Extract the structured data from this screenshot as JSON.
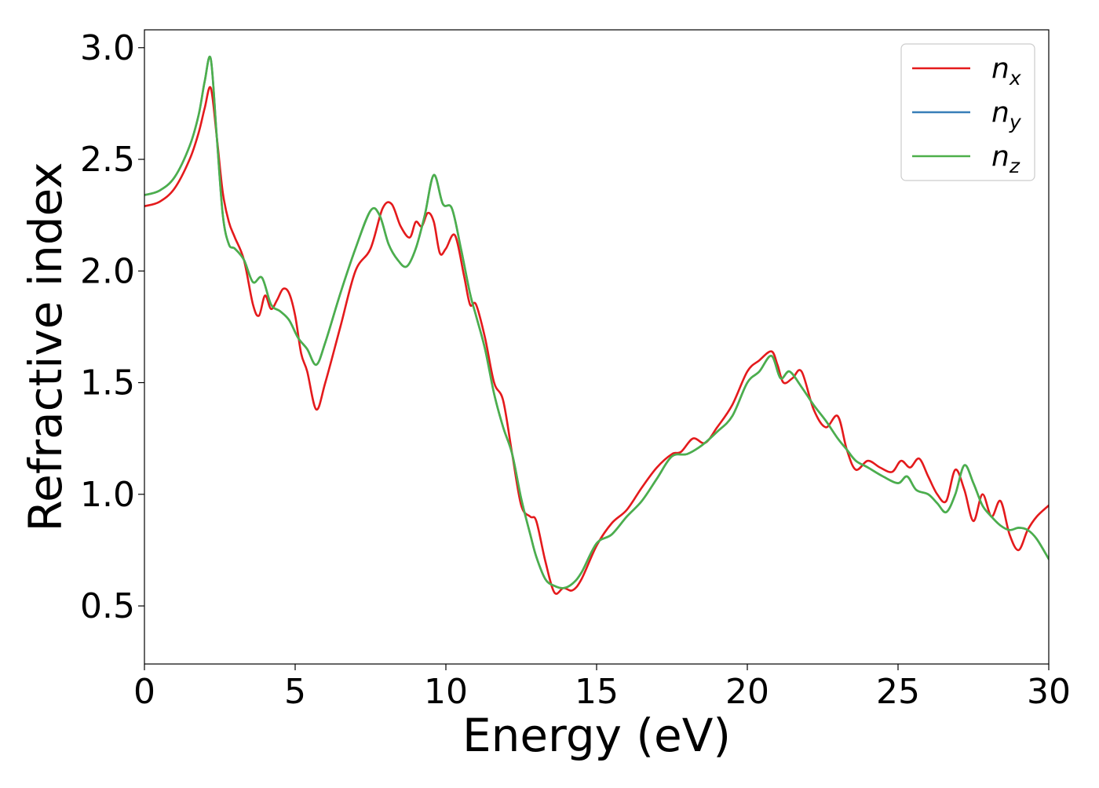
{
  "chart_data": {
    "type": "line",
    "xlabel": "Energy (eV)",
    "ylabel": "Refractive index",
    "xlim": [
      0,
      30
    ],
    "ylim": [
      0.24,
      3.08
    ],
    "xticks": [
      0,
      5,
      10,
      15,
      20,
      25,
      30
    ],
    "xtick_labels": [
      "0",
      "5",
      "10",
      "15",
      "20",
      "25",
      "30"
    ],
    "yticks": [
      0.5,
      1.0,
      1.5,
      2.0,
      2.5,
      3.0
    ],
    "ytick_labels": [
      "0.5",
      "1.0",
      "1.5",
      "2.0",
      "2.5",
      "3.0"
    ],
    "grid": false,
    "legend_position": "top-right",
    "series": [
      {
        "name": "n_x",
        "legend_base": "n",
        "legend_sub": "x",
        "color": "#e41a1c",
        "x": [
          0,
          0.5,
          1.0,
          1.5,
          1.8,
          2.0,
          2.2,
          2.4,
          2.6,
          2.8,
          3.0,
          3.3,
          3.6,
          3.8,
          4.0,
          4.2,
          4.4,
          4.6,
          4.8,
          5.0,
          5.2,
          5.4,
          5.7,
          6.0,
          6.5,
          7.0,
          7.5,
          7.9,
          8.2,
          8.5,
          8.8,
          9.0,
          9.2,
          9.4,
          9.6,
          9.8,
          10.0,
          10.3,
          10.6,
          10.8,
          11.0,
          11.3,
          11.6,
          11.9,
          12.2,
          12.5,
          12.8,
          13.0,
          13.3,
          13.6,
          13.9,
          14.2,
          14.5,
          15.0,
          15.5,
          16.0,
          16.5,
          17.0,
          17.5,
          17.8,
          18.2,
          18.6,
          19.0,
          19.5,
          20.0,
          20.4,
          20.8,
          21.0,
          21.2,
          21.5,
          21.8,
          22.2,
          22.6,
          23.0,
          23.3,
          23.6,
          24.0,
          24.4,
          24.8,
          25.1,
          25.4,
          25.7,
          26.0,
          26.3,
          26.6,
          26.9,
          27.2,
          27.5,
          27.8,
          28.1,
          28.4,
          28.7,
          29.0,
          29.3,
          29.6,
          30.0
        ],
        "y": [
          2.29,
          2.31,
          2.37,
          2.5,
          2.62,
          2.73,
          2.82,
          2.6,
          2.35,
          2.22,
          2.15,
          2.05,
          1.85,
          1.8,
          1.89,
          1.83,
          1.87,
          1.92,
          1.9,
          1.8,
          1.63,
          1.55,
          1.38,
          1.5,
          1.75,
          2.0,
          2.1,
          2.28,
          2.3,
          2.2,
          2.15,
          2.22,
          2.2,
          2.26,
          2.22,
          2.08,
          2.1,
          2.16,
          1.98,
          1.85,
          1.85,
          1.7,
          1.5,
          1.42,
          1.18,
          0.95,
          0.9,
          0.88,
          0.7,
          0.56,
          0.58,
          0.57,
          0.62,
          0.77,
          0.87,
          0.93,
          1.03,
          1.12,
          1.18,
          1.19,
          1.25,
          1.23,
          1.3,
          1.4,
          1.55,
          1.6,
          1.64,
          1.58,
          1.5,
          1.52,
          1.55,
          1.38,
          1.3,
          1.35,
          1.2,
          1.11,
          1.15,
          1.12,
          1.1,
          1.15,
          1.12,
          1.16,
          1.08,
          1.0,
          0.97,
          1.11,
          1.02,
          0.88,
          1.0,
          0.9,
          0.97,
          0.82,
          0.75,
          0.84,
          0.9,
          0.95
        ]
      },
      {
        "name": "n_y",
        "legend_base": "n",
        "legend_sub": "y",
        "color": "#377eb8",
        "x": [
          0,
          0.5,
          1.0,
          1.5,
          1.8,
          2.0,
          2.2,
          2.4,
          2.6,
          2.8,
          3.0,
          3.3,
          3.6,
          3.9,
          4.2,
          4.5,
          4.8,
          5.1,
          5.4,
          5.7,
          6.0,
          6.5,
          7.0,
          7.5,
          7.8,
          8.1,
          8.4,
          8.7,
          9.0,
          9.3,
          9.6,
          9.9,
          10.2,
          10.5,
          10.8,
          11.0,
          11.3,
          11.6,
          11.9,
          12.2,
          12.5,
          12.8,
          13.0,
          13.3,
          13.6,
          13.9,
          14.2,
          14.5,
          15.0,
          15.5,
          16.0,
          16.5,
          17.0,
          17.5,
          18.0,
          18.5,
          19.0,
          19.5,
          20.0,
          20.4,
          20.8,
          21.1,
          21.4,
          21.8,
          22.2,
          22.6,
          23.0,
          23.3,
          23.6,
          24.0,
          24.5,
          25.0,
          25.3,
          25.6,
          26.0,
          26.3,
          26.6,
          26.9,
          27.2,
          27.5,
          27.8,
          28.1,
          28.4,
          28.7,
          29.0,
          29.3,
          29.6,
          30.0
        ],
        "y": [
          2.34,
          2.36,
          2.42,
          2.56,
          2.7,
          2.85,
          2.95,
          2.6,
          2.25,
          2.12,
          2.1,
          2.05,
          1.95,
          1.97,
          1.85,
          1.82,
          1.78,
          1.7,
          1.65,
          1.58,
          1.68,
          1.9,
          2.1,
          2.27,
          2.25,
          2.12,
          2.05,
          2.02,
          2.1,
          2.25,
          2.43,
          2.3,
          2.28,
          2.1,
          1.9,
          1.8,
          1.65,
          1.45,
          1.3,
          1.18,
          0.98,
          0.82,
          0.72,
          0.62,
          0.59,
          0.58,
          0.6,
          0.65,
          0.78,
          0.82,
          0.9,
          0.97,
          1.07,
          1.17,
          1.18,
          1.22,
          1.28,
          1.35,
          1.5,
          1.55,
          1.62,
          1.52,
          1.55,
          1.48,
          1.4,
          1.33,
          1.25,
          1.2,
          1.15,
          1.12,
          1.08,
          1.05,
          1.08,
          1.02,
          1.0,
          0.96,
          0.92,
          1.0,
          1.13,
          1.05,
          0.95,
          0.9,
          0.86,
          0.84,
          0.85,
          0.84,
          0.8,
          0.71
        ]
      },
      {
        "name": "n_z",
        "legend_base": "n",
        "legend_sub": "z",
        "color": "#4daf4a",
        "x": [
          0,
          0.5,
          1.0,
          1.5,
          1.8,
          2.0,
          2.2,
          2.4,
          2.6,
          2.8,
          3.0,
          3.3,
          3.6,
          3.9,
          4.2,
          4.5,
          4.8,
          5.1,
          5.4,
          5.7,
          6.0,
          6.5,
          7.0,
          7.5,
          7.8,
          8.1,
          8.4,
          8.7,
          9.0,
          9.3,
          9.6,
          9.9,
          10.2,
          10.5,
          10.8,
          11.0,
          11.3,
          11.6,
          11.9,
          12.2,
          12.5,
          12.8,
          13.0,
          13.3,
          13.6,
          13.9,
          14.2,
          14.5,
          15.0,
          15.5,
          16.0,
          16.5,
          17.0,
          17.5,
          18.0,
          18.5,
          19.0,
          19.5,
          20.0,
          20.4,
          20.8,
          21.1,
          21.4,
          21.8,
          22.2,
          22.6,
          23.0,
          23.3,
          23.6,
          24.0,
          24.5,
          25.0,
          25.3,
          25.6,
          26.0,
          26.3,
          26.6,
          26.9,
          27.2,
          27.5,
          27.8,
          28.1,
          28.4,
          28.7,
          29.0,
          29.3,
          29.6,
          30.0
        ],
        "y": [
          2.34,
          2.36,
          2.42,
          2.56,
          2.7,
          2.85,
          2.95,
          2.6,
          2.25,
          2.12,
          2.1,
          2.05,
          1.95,
          1.97,
          1.85,
          1.82,
          1.78,
          1.7,
          1.65,
          1.58,
          1.68,
          1.9,
          2.1,
          2.27,
          2.25,
          2.12,
          2.05,
          2.02,
          2.1,
          2.25,
          2.43,
          2.3,
          2.28,
          2.1,
          1.9,
          1.8,
          1.65,
          1.45,
          1.3,
          1.18,
          0.98,
          0.82,
          0.72,
          0.62,
          0.59,
          0.58,
          0.6,
          0.65,
          0.78,
          0.82,
          0.9,
          0.97,
          1.07,
          1.17,
          1.18,
          1.22,
          1.28,
          1.35,
          1.5,
          1.55,
          1.62,
          1.52,
          1.55,
          1.48,
          1.4,
          1.33,
          1.25,
          1.2,
          1.15,
          1.12,
          1.08,
          1.05,
          1.08,
          1.02,
          1.0,
          0.96,
          0.92,
          1.0,
          1.13,
          1.05,
          0.95,
          0.9,
          0.86,
          0.84,
          0.85,
          0.84,
          0.8,
          0.71
        ]
      }
    ]
  }
}
